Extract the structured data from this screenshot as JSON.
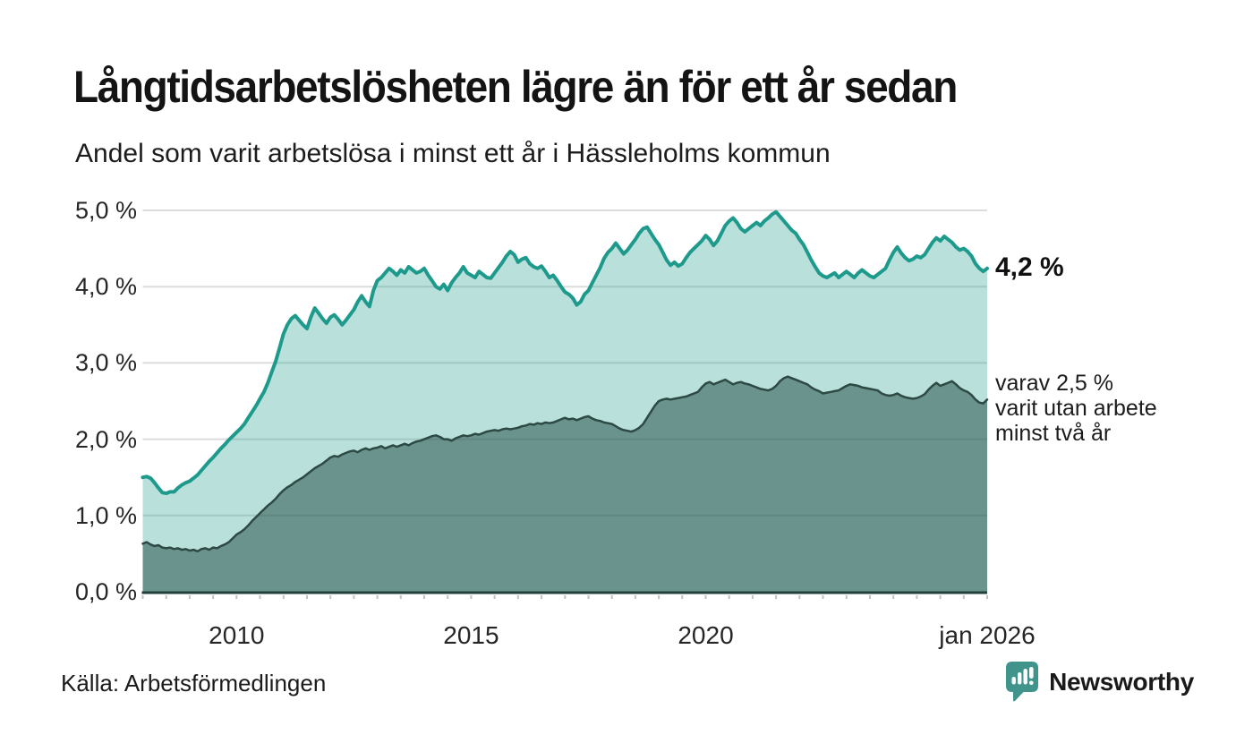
{
  "header": {
    "title": "Långtidsarbetslösheten lägre än för ett år sedan",
    "subtitle": "Andel som varit arbetslösa i minst ett år i Hässleholms kommun"
  },
  "footer": {
    "source": "Källa: Arbetsförmedlingen",
    "brand": "Newsworthy"
  },
  "annotations": {
    "latest_value_label": "4,2 %",
    "secondary_label_lines": [
      "varav 2,5 %",
      "varit utan arbete",
      "minst två år"
    ]
  },
  "colors": {
    "accent_teal": "#1d9a8c",
    "dark_teal": "#2d4944",
    "baseline": "#24403c",
    "grid": "#dcdcdc",
    "minor_tick": "#c2c2c2",
    "brand_teal": "#40948b",
    "fill_light": "rgba(29,154,140,0.31)",
    "fill_dark": "rgba(36,76,69,0.52)"
  },
  "chart_data": {
    "type": "area",
    "title": "Långtidsarbetslösheten lägre än för ett år sedan",
    "subtitle": "Andel som varit arbetslösa i minst ett år i Hässleholms kommun",
    "grid": true,
    "legend": "none (direct labels at line ends)",
    "x_axis": {
      "range": [
        2008,
        2026
      ],
      "minor_tick_step_years": 0.5,
      "ticks": [
        {
          "year": 2010,
          "label": "2010"
        },
        {
          "year": 2015,
          "label": "2015"
        },
        {
          "year": 2020,
          "label": "2020"
        },
        {
          "year": 2026,
          "label": "jan 2026"
        }
      ]
    },
    "y_axis": {
      "range": [
        0,
        5
      ],
      "ticks": [
        {
          "value": 5,
          "label": "5,0 %"
        },
        {
          "value": 4,
          "label": "4,0 %"
        },
        {
          "value": 3,
          "label": "3,0 %"
        },
        {
          "value": 2,
          "label": "2,0 %"
        },
        {
          "value": 1,
          "label": "1,0 %"
        },
        {
          "value": 0,
          "label": "0,0 %"
        }
      ]
    },
    "series": [
      {
        "id": "minst-ett-ar",
        "name": "Arbetslösa minst ett år",
        "end_label": "4,2 %",
        "color": "#1d9a8c",
        "fill": "rgba(29,154,140,0.31)",
        "x_start": 2008,
        "x_step_years": 0.0833333,
        "values": [
          1.5,
          1.51,
          1.49,
          1.43,
          1.36,
          1.3,
          1.29,
          1.31,
          1.31,
          1.36,
          1.4,
          1.43,
          1.45,
          1.49,
          1.53,
          1.59,
          1.65,
          1.71,
          1.76,
          1.82,
          1.88,
          1.93,
          1.99,
          2.04,
          2.09,
          2.14,
          2.2,
          2.28,
          2.36,
          2.44,
          2.53,
          2.62,
          2.74,
          2.88,
          3.02,
          3.2,
          3.38,
          3.5,
          3.58,
          3.62,
          3.56,
          3.5,
          3.45,
          3.6,
          3.72,
          3.65,
          3.58,
          3.52,
          3.6,
          3.63,
          3.57,
          3.5,
          3.56,
          3.63,
          3.7,
          3.8,
          3.88,
          3.8,
          3.74,
          3.95,
          4.08,
          4.12,
          4.18,
          4.24,
          4.2,
          4.15,
          4.22,
          4.18,
          4.26,
          4.22,
          4.18,
          4.2,
          4.24,
          4.15,
          4.08,
          4.0,
          3.97,
          4.03,
          3.95,
          4.05,
          4.12,
          4.18,
          4.26,
          4.18,
          4.15,
          4.12,
          4.2,
          4.16,
          4.12,
          4.11,
          4.18,
          4.25,
          4.32,
          4.4,
          4.46,
          4.42,
          4.32,
          4.36,
          4.38,
          4.3,
          4.26,
          4.24,
          4.27,
          4.2,
          4.12,
          4.15,
          4.08,
          4.0,
          3.93,
          3.9,
          3.85,
          3.76,
          3.8,
          3.9,
          3.95,
          4.05,
          4.15,
          4.25,
          4.37,
          4.45,
          4.5,
          4.57,
          4.5,
          4.43,
          4.48,
          4.55,
          4.62,
          4.7,
          4.76,
          4.78,
          4.7,
          4.62,
          4.55,
          4.45,
          4.35,
          4.28,
          4.32,
          4.27,
          4.3,
          4.38,
          4.45,
          4.5,
          4.55,
          4.6,
          4.67,
          4.62,
          4.54,
          4.6,
          4.7,
          4.8,
          4.86,
          4.9,
          4.84,
          4.76,
          4.72,
          4.76,
          4.8,
          4.84,
          4.8,
          4.86,
          4.9,
          4.95,
          4.98,
          4.92,
          4.86,
          4.8,
          4.74,
          4.7,
          4.62,
          4.55,
          4.45,
          4.35,
          4.26,
          4.18,
          4.14,
          4.12,
          4.15,
          4.18,
          4.12,
          4.16,
          4.2,
          4.16,
          4.12,
          4.18,
          4.22,
          4.18,
          4.14,
          4.12,
          4.16,
          4.2,
          4.24,
          4.35,
          4.45,
          4.52,
          4.44,
          4.38,
          4.34,
          4.36,
          4.4,
          4.38,
          4.42,
          4.5,
          4.58,
          4.64,
          4.6,
          4.66,
          4.62,
          4.58,
          4.52,
          4.48,
          4.5,
          4.46,
          4.4,
          4.3,
          4.24,
          4.2,
          4.24
        ]
      },
      {
        "id": "minst-tva-ar",
        "name": "Utan arbete minst två år",
        "end_label": "varav 2,5 % varit utan arbete minst två år",
        "color": "#2d4944",
        "fill": "rgba(36,76,69,0.52)",
        "x_start": 2008,
        "x_step_years": 0.0833333,
        "values": [
          0.63,
          0.65,
          0.62,
          0.6,
          0.61,
          0.58,
          0.57,
          0.58,
          0.56,
          0.57,
          0.55,
          0.56,
          0.54,
          0.55,
          0.53,
          0.56,
          0.57,
          0.55,
          0.58,
          0.57,
          0.6,
          0.62,
          0.65,
          0.7,
          0.75,
          0.78,
          0.82,
          0.87,
          0.93,
          0.98,
          1.03,
          1.08,
          1.13,
          1.17,
          1.22,
          1.28,
          1.33,
          1.37,
          1.4,
          1.44,
          1.47,
          1.5,
          1.54,
          1.58,
          1.62,
          1.65,
          1.68,
          1.72,
          1.76,
          1.78,
          1.77,
          1.8,
          1.82,
          1.84,
          1.85,
          1.83,
          1.86,
          1.88,
          1.86,
          1.88,
          1.89,
          1.91,
          1.88,
          1.9,
          1.92,
          1.9,
          1.92,
          1.94,
          1.92,
          1.95,
          1.97,
          1.98,
          2.0,
          2.02,
          2.04,
          2.05,
          2.03,
          2.0,
          2.0,
          1.98,
          2.01,
          2.03,
          2.05,
          2.04,
          2.05,
          2.07,
          2.06,
          2.08,
          2.1,
          2.11,
          2.12,
          2.11,
          2.13,
          2.14,
          2.13,
          2.14,
          2.15,
          2.17,
          2.18,
          2.2,
          2.19,
          2.21,
          2.2,
          2.22,
          2.21,
          2.22,
          2.24,
          2.26,
          2.28,
          2.26,
          2.27,
          2.25,
          2.27,
          2.29,
          2.3,
          2.27,
          2.25,
          2.24,
          2.22,
          2.21,
          2.2,
          2.17,
          2.14,
          2.12,
          2.11,
          2.1,
          2.12,
          2.15,
          2.2,
          2.28,
          2.36,
          2.44,
          2.5,
          2.52,
          2.53,
          2.52,
          2.53,
          2.54,
          2.55,
          2.56,
          2.58,
          2.6,
          2.62,
          2.68,
          2.73,
          2.75,
          2.72,
          2.74,
          2.76,
          2.78,
          2.75,
          2.72,
          2.74,
          2.75,
          2.73,
          2.72,
          2.7,
          2.68,
          2.66,
          2.65,
          2.64,
          2.66,
          2.7,
          2.76,
          2.8,
          2.82,
          2.8,
          2.78,
          2.76,
          2.74,
          2.72,
          2.68,
          2.65,
          2.63,
          2.6,
          2.61,
          2.62,
          2.63,
          2.64,
          2.67,
          2.7,
          2.72,
          2.71,
          2.7,
          2.68,
          2.67,
          2.66,
          2.65,
          2.64,
          2.6,
          2.58,
          2.57,
          2.58,
          2.6,
          2.57,
          2.55,
          2.54,
          2.53,
          2.54,
          2.56,
          2.59,
          2.65,
          2.7,
          2.74,
          2.7,
          2.72,
          2.74,
          2.76,
          2.72,
          2.67,
          2.64,
          2.62,
          2.58,
          2.52,
          2.48,
          2.47,
          2.52
        ]
      }
    ]
  }
}
